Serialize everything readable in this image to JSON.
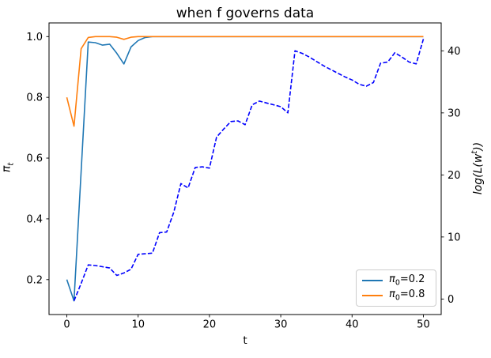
{
  "chart_data": {
    "type": "line",
    "title": "when f governs data",
    "xlabel": "t",
    "ylabel_left": {
      "base": "π",
      "sub": "t"
    },
    "ylabel_right": {
      "pre": "log(L(w",
      "sup": "t",
      "post": "))"
    },
    "xlim": [
      -2.5,
      52.5
    ],
    "ylim_left": [
      0.085,
      1.045
    ],
    "ylim_right": [
      -2.5,
      44.5
    ],
    "grid": false,
    "xticks": [
      0,
      10,
      20,
      30,
      40,
      50
    ],
    "xtick_labels": [
      "0",
      "10",
      "20",
      "30",
      "40",
      "50"
    ],
    "yticks_left": [
      0.2,
      0.4,
      0.6,
      0.8,
      1.0
    ],
    "ytick_left_labels": [
      "0.2",
      "0.4",
      "0.6",
      "0.8",
      "1.0"
    ],
    "yticks_right": [
      0,
      10,
      20,
      30,
      40
    ],
    "ytick_right_labels": [
      "0",
      "10",
      "20",
      "30",
      "40"
    ],
    "legend": {
      "position": "lower right",
      "entries": [
        {
          "symbol": "π",
          "sub": "0",
          "value": "=0.2",
          "color": "#1f77b4",
          "linestyle": "solid"
        },
        {
          "symbol": "π",
          "sub": "0",
          "value": "=0.8",
          "color": "#ff7f0e",
          "linestyle": "solid"
        }
      ]
    },
    "series": [
      {
        "name": "π0=0.2",
        "axis": "left",
        "color": "#1f77b4",
        "linestyle": "solid",
        "x": [
          0,
          1,
          2,
          3,
          4,
          5,
          6,
          7,
          8,
          9,
          10,
          11,
          12,
          13,
          14,
          15,
          16,
          17,
          18,
          19,
          20,
          21,
          22,
          23,
          24,
          25,
          26,
          27,
          28,
          29,
          30,
          31,
          32,
          33,
          34,
          35,
          36,
          37,
          38,
          39,
          40,
          41,
          42,
          43,
          44,
          45,
          46,
          47,
          48,
          49,
          50
        ],
        "y": [
          0.2,
          0.13,
          0.555,
          0.982,
          0.98,
          0.972,
          0.975,
          0.945,
          0.91,
          0.966,
          0.987,
          0.997,
          1.0,
          1.0,
          1.0,
          1.0,
          1.0,
          1.0,
          1.0,
          1.0,
          1.0,
          1.0,
          1.0,
          1.0,
          1.0,
          1.0,
          1.0,
          1.0,
          1.0,
          1.0,
          1.0,
          1.0,
          1.0,
          1.0,
          1.0,
          1.0,
          1.0,
          1.0,
          1.0,
          1.0,
          1.0,
          1.0,
          1.0,
          1.0,
          1.0,
          1.0,
          1.0,
          1.0,
          1.0,
          1.0,
          1.0
        ]
      },
      {
        "name": "π0=0.8",
        "axis": "left",
        "color": "#ff7f0e",
        "linestyle": "solid",
        "x": [
          0,
          1,
          2,
          3,
          4,
          5,
          6,
          7,
          8,
          9,
          10,
          11,
          12,
          13,
          14,
          15,
          16,
          17,
          18,
          19,
          20,
          21,
          22,
          23,
          24,
          25,
          26,
          27,
          28,
          29,
          30,
          31,
          32,
          33,
          34,
          35,
          36,
          37,
          38,
          39,
          40,
          41,
          42,
          43,
          44,
          45,
          46,
          47,
          48,
          49,
          50
        ],
        "y": [
          0.8,
          0.705,
          0.96,
          0.997,
          1.0,
          1.0,
          1.0,
          0.998,
          0.991,
          0.998,
          1.0,
          1.0,
          1.0,
          1.0,
          1.0,
          1.0,
          1.0,
          1.0,
          1.0,
          1.0,
          1.0,
          1.0,
          1.0,
          1.0,
          1.0,
          1.0,
          1.0,
          1.0,
          1.0,
          1.0,
          1.0,
          1.0,
          1.0,
          1.0,
          1.0,
          1.0,
          1.0,
          1.0,
          1.0,
          1.0,
          1.0,
          1.0,
          1.0,
          1.0,
          1.0,
          1.0,
          1.0,
          1.0,
          1.0,
          1.0,
          1.0
        ]
      },
      {
        "name": "log(L(w^t))",
        "axis": "right",
        "color": "#0000ff",
        "linestyle": "dashed",
        "x": [
          1,
          2,
          3,
          4,
          5,
          6,
          7,
          8,
          9,
          10,
          11,
          12,
          13,
          14,
          15,
          16,
          17,
          18,
          19,
          20,
          21,
          22,
          23,
          24,
          25,
          26,
          27,
          28,
          29,
          30,
          31,
          32,
          33,
          34,
          35,
          36,
          37,
          38,
          39,
          40,
          41,
          42,
          43,
          44,
          45,
          46,
          47,
          48,
          49,
          50
        ],
        "y": [
          -0.3,
          2.5,
          5.5,
          5.4,
          5.2,
          5.0,
          3.8,
          4.2,
          4.8,
          7.2,
          7.3,
          7.4,
          10.7,
          10.8,
          14.0,
          18.6,
          17.9,
          21.2,
          21.3,
          21.1,
          26.1,
          27.4,
          28.6,
          28.7,
          28.1,
          31.3,
          31.9,
          31.6,
          31.3,
          31.0,
          30.0,
          40.0,
          39.6,
          39.0,
          38.3,
          37.6,
          37.0,
          36.4,
          35.8,
          35.3,
          34.6,
          34.3,
          34.9,
          38.0,
          38.2,
          39.7,
          39.0,
          38.2,
          37.9,
          41.9
        ]
      }
    ]
  }
}
